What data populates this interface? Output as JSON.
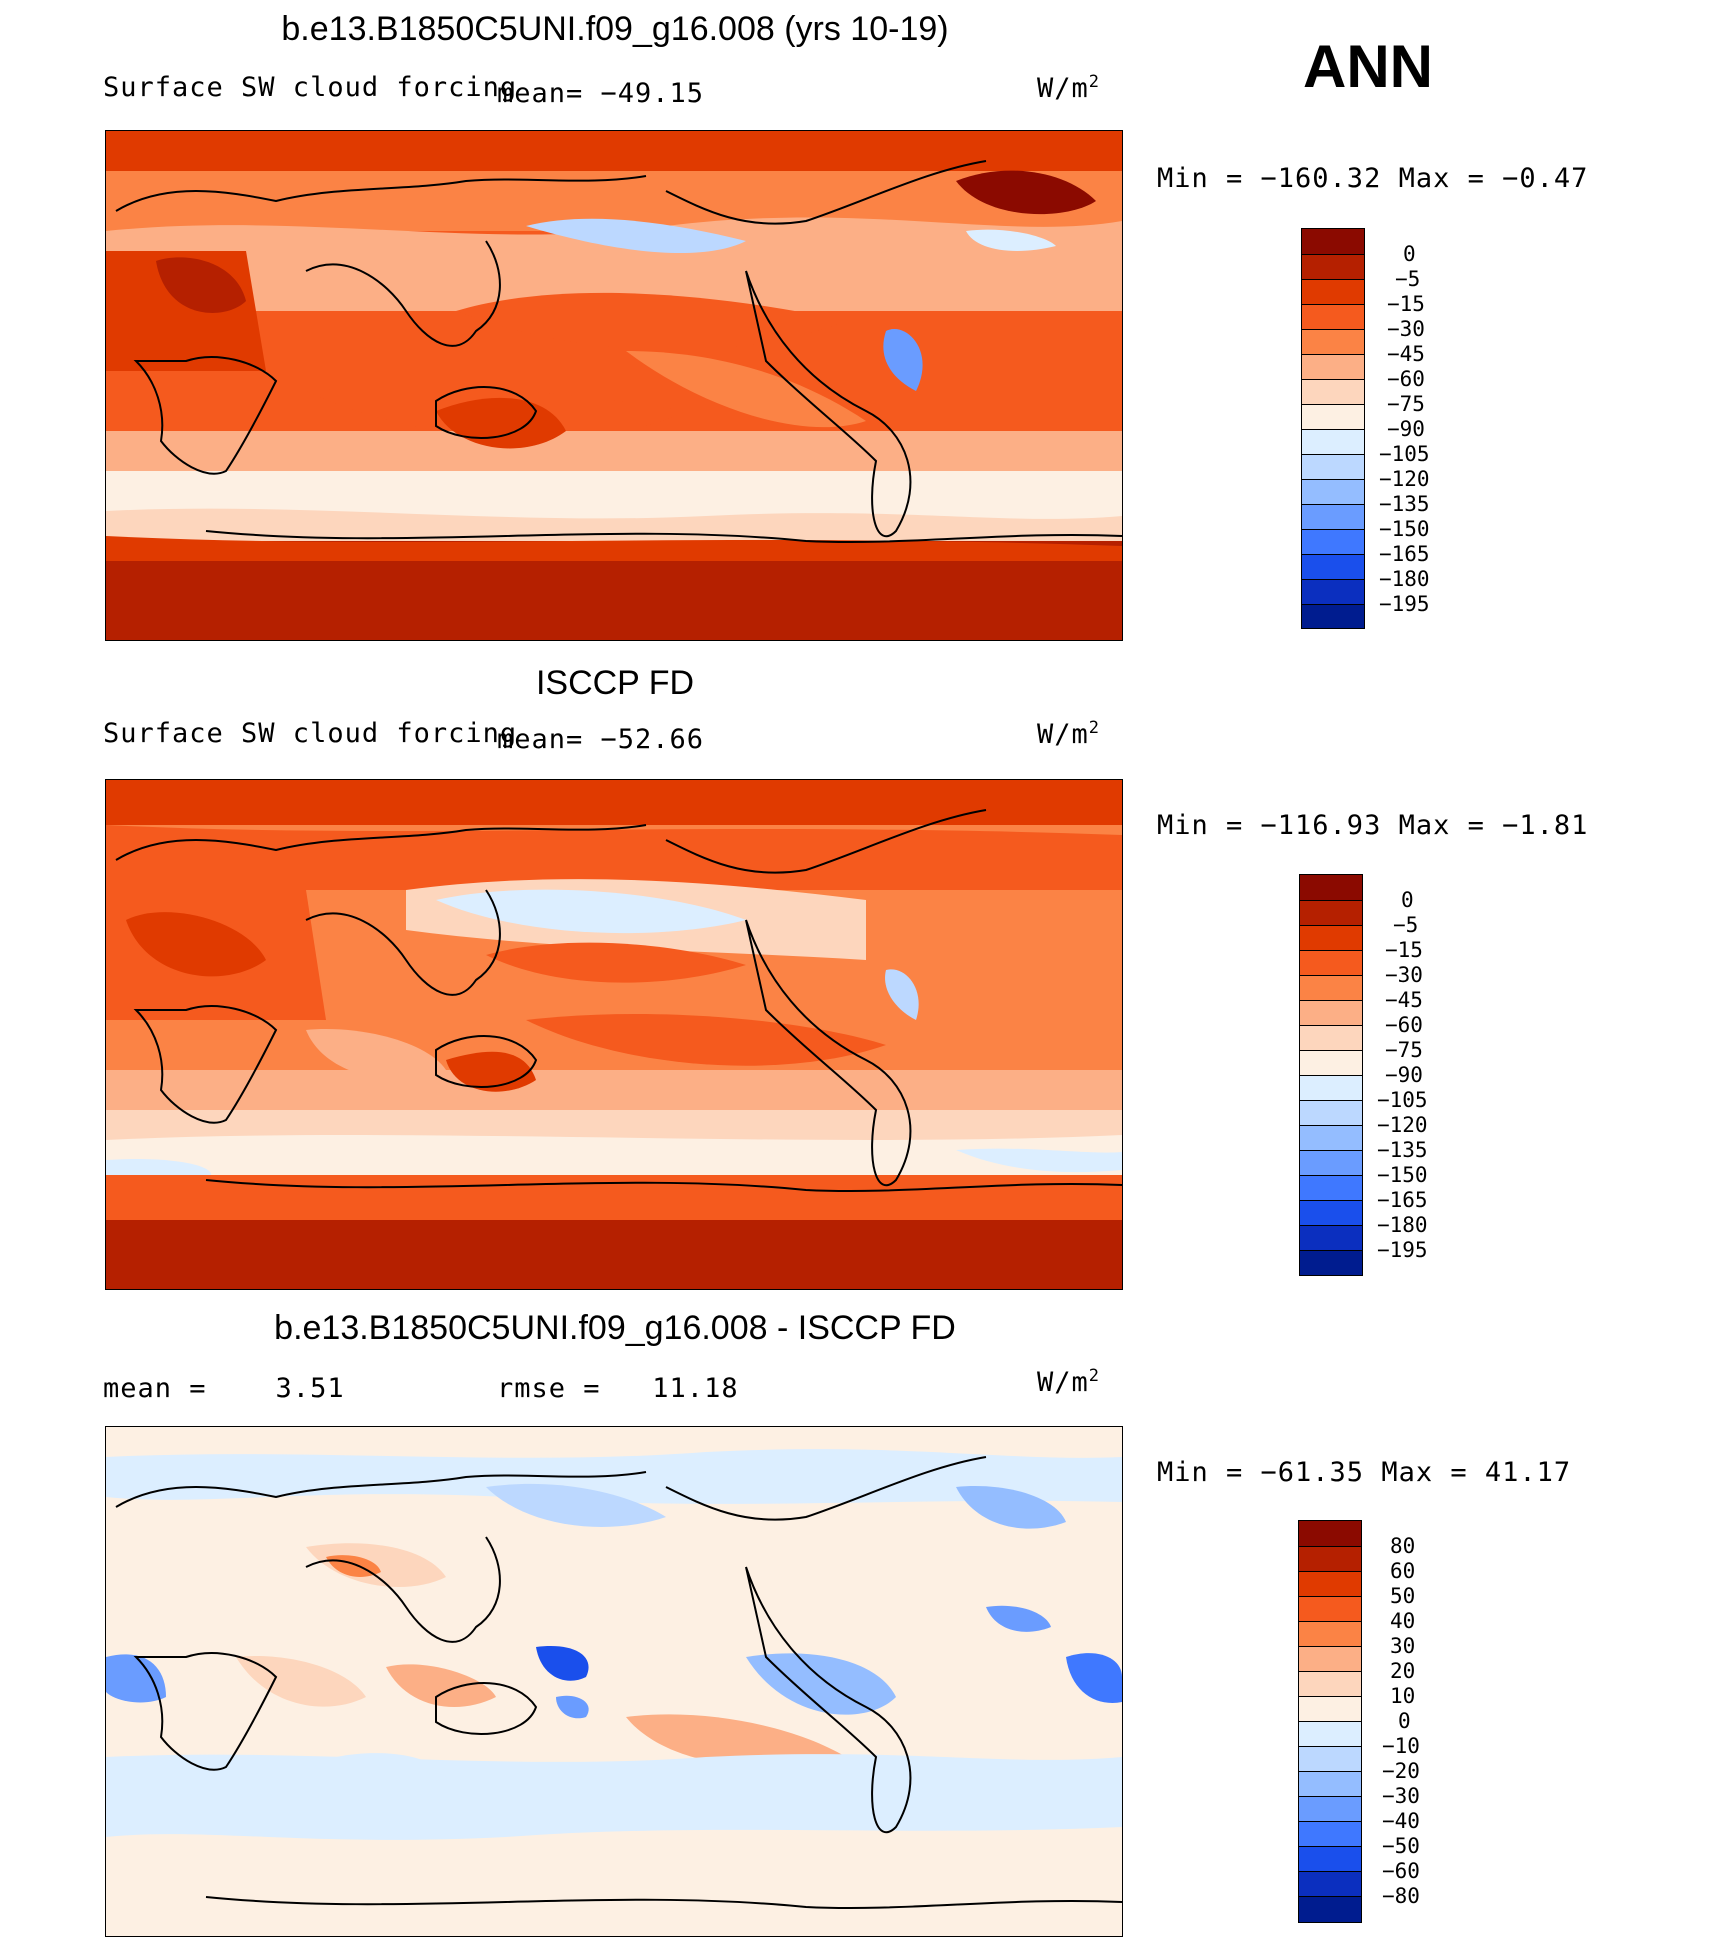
{
  "season": "ANN",
  "panels": [
    {
      "title": "b.e13.B1850C5UNI.f09_g16.008 (yrs 10-19)",
      "left_label": "Surface SW cloud forcing",
      "mid_label": "mean= −49.15",
      "units": "W/m",
      "units_sup": "2",
      "minmax": "Min = −160.32 Max =  −0.47",
      "colorbar_labels": [
        "0",
        "−5",
        "−15",
        "−30",
        "−45",
        "−60",
        "−75",
        "−90",
        "−105",
        "−120",
        "−135",
        "−150",
        "−165",
        "−180",
        "−195"
      ]
    },
    {
      "title": "ISCCP FD",
      "left_label": "Surface SW cloud forcing",
      "mid_label": "mean= −52.66",
      "units": "W/m",
      "units_sup": "2",
      "minmax": "Min = −116.93 Max =  −1.81",
      "colorbar_labels": [
        "0",
        "−5",
        "−15",
        "−30",
        "−45",
        "−60",
        "−75",
        "−90",
        "−105",
        "−120",
        "−135",
        "−150",
        "−165",
        "−180",
        "−195"
      ]
    },
    {
      "title": "b.e13.B1850C5UNI.f09_g16.008 - ISCCP FD",
      "left_label": "mean =    3.51",
      "mid_label": "rmse =   11.18",
      "units": "W/m",
      "units_sup": "2",
      "minmax": "Min = −61.35 Max =  41.17",
      "colorbar_labels": [
        "80",
        "60",
        "50",
        "40",
        "30",
        "20",
        "10",
        "0",
        "−10",
        "−20",
        "−30",
        "−40",
        "−50",
        "−60",
        "−80"
      ]
    }
  ],
  "colors": {
    "absolute_scale": [
      "#8b0a00",
      "#b52000",
      "#e03a00",
      "#f55a1e",
      "#fb8345",
      "#fcaf86",
      "#fdd6bd",
      "#fdf0e3",
      "#dceeff",
      "#bcd8ff",
      "#94bdff",
      "#6a9cff",
      "#3f78ff",
      "#1a4fec",
      "#0b2fbf",
      "#001c8f"
    ],
    "anomaly_scale": [
      "#8b0a00",
      "#b52000",
      "#e03a00",
      "#f55a1e",
      "#fb8345",
      "#fcaf86",
      "#fdd6bd",
      "#fdf0e3",
      "#dceeff",
      "#bcd8ff",
      "#94bdff",
      "#6a9cff",
      "#3f78ff",
      "#1a4fec",
      "#0b2fbf",
      "#001c8f"
    ]
  }
}
